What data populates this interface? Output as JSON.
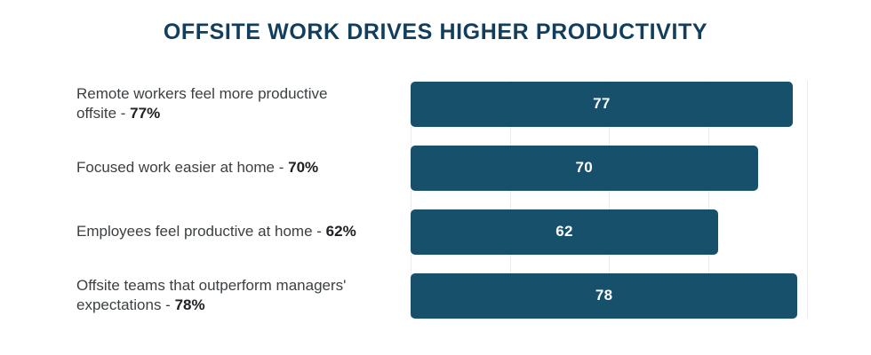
{
  "title": "OFFSITE WORK DRIVES HIGHER PRODUCTIVITY",
  "colors": {
    "bar": "#17506B",
    "title_text": "#123E5E",
    "label_text": "#3C4043",
    "label_bold_text": "#202124",
    "gridline": "#EBEBEB",
    "background": "#FFFFFF",
    "value_text": "#FFFFFF"
  },
  "chart_data": {
    "type": "bar",
    "orientation": "horizontal",
    "title": "OFFSITE WORK DRIVES HIGHER PRODUCTIVITY",
    "categories": [
      "Remote workers feel more productive offsite - 77%",
      "Focused work easier at home - 70%",
      "Employees feel productive at home - 62%",
      "Offsite teams that outperform managers' expectations - 78%"
    ],
    "values": [
      77,
      70,
      62,
      78
    ],
    "value_labels": [
      "77",
      "70",
      "62",
      "78"
    ],
    "xlabel": "",
    "ylabel": "",
    "xlim": [
      0,
      85.7
    ],
    "gridlines": [
      0,
      20,
      40,
      60,
      80
    ],
    "grid": "vertical-only",
    "legend_position": "none",
    "bar_labels_position": "inside-center",
    "rows": [
      {
        "label": "Remote workers feel more productive\noffsite - ",
        "pct": "77%",
        "value": 77,
        "bar_label": "77"
      },
      {
        "label": "Focused work easier at home - ",
        "pct": "70%",
        "value": 70,
        "bar_label": "70"
      },
      {
        "label": "Employees feel productive at home - ",
        "pct": "62%",
        "value": 62,
        "bar_label": "62"
      },
      {
        "label": "Offsite teams that outperform managers'\nexpectations - ",
        "pct": "78%",
        "value": 78,
        "bar_label": "78"
      }
    ]
  }
}
